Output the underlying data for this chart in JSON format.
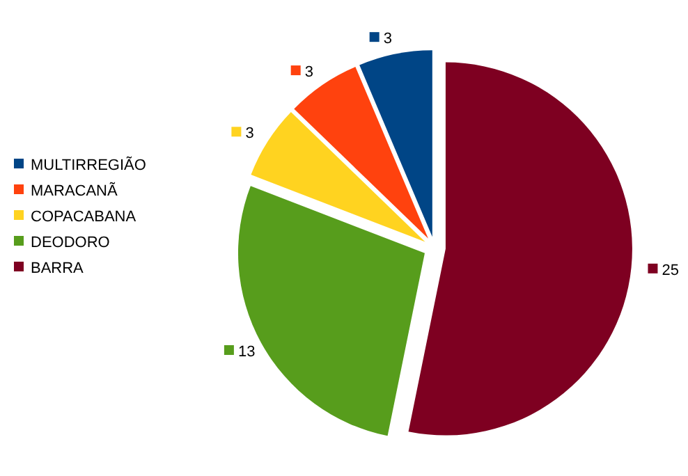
{
  "chart_data": {
    "type": "pie",
    "categories": [
      "BARRA",
      "DEODORO",
      "COPACABANA",
      "MARACANÃ",
      "MULTIRREGIÃO"
    ],
    "values": [
      25,
      13,
      3,
      3,
      3
    ],
    "colors": [
      "#7e0021",
      "#579d1c",
      "#ffd320",
      "#ff420e",
      "#004586"
    ],
    "data_labels": true,
    "legend": "left"
  }
}
